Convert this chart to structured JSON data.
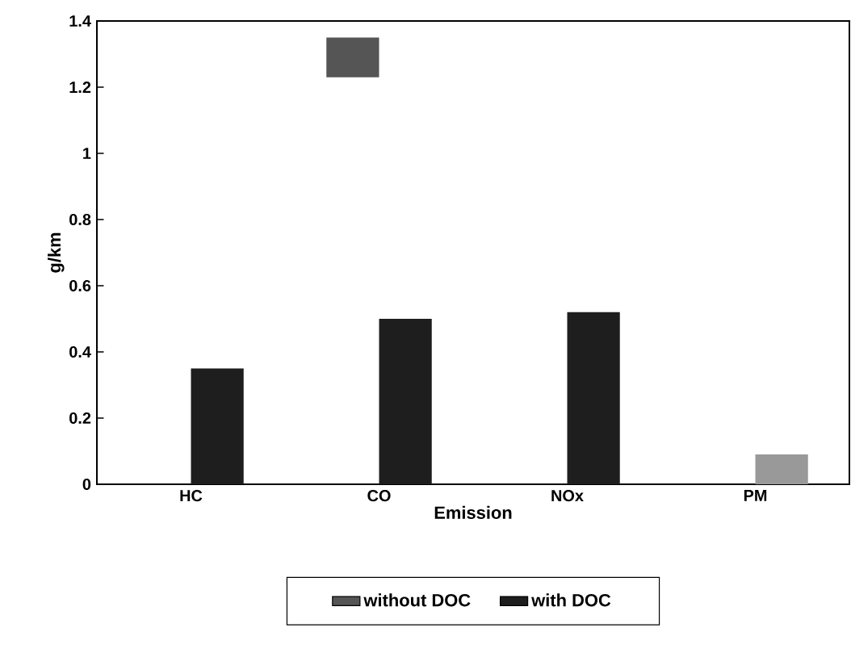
{
  "chart_data": {
    "type": "bar",
    "xlabel": "Emission",
    "ylabel": "g/km",
    "categories": [
      "HC",
      "CO",
      "NOx",
      "PM"
    ],
    "series": [
      {
        "name": "without DOC",
        "color": "#555555",
        "values": [
          null,
          0.12,
          null,
          null
        ],
        "base": [
          null,
          1.23,
          null,
          null
        ]
      },
      {
        "name": "with DOC",
        "color": "#1e1e1e",
        "colors": [
          null,
          null,
          null,
          "#999999"
        ],
        "values": [
          0.35,
          0.5,
          0.52,
          0.09
        ]
      }
    ],
    "ylim": [
      0,
      1.4
    ],
    "yticks": [
      0,
      0.2,
      0.4,
      0.6,
      0.8,
      1,
      1.2,
      1.4
    ],
    "legend": "bottom",
    "grid": false
  }
}
